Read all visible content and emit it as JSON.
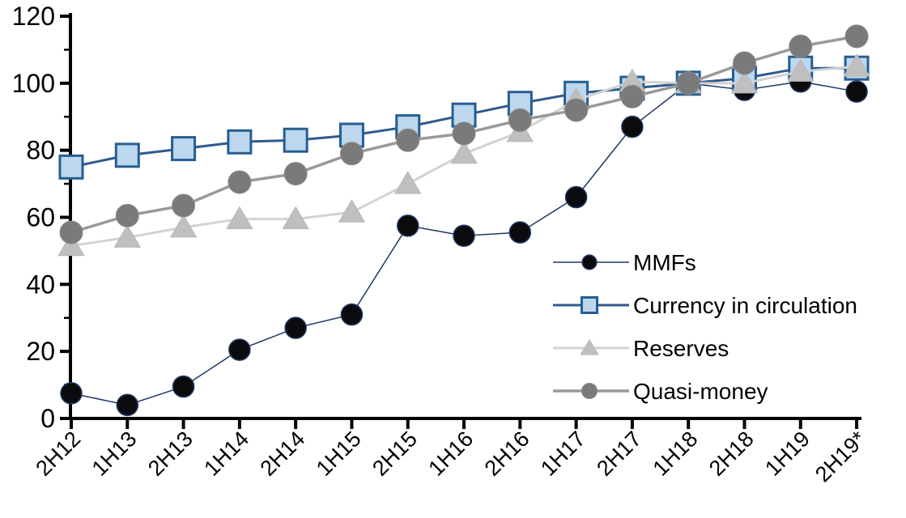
{
  "page": {
    "background": "#FFFFFF",
    "text_color": "#000000",
    "axis_color": "#000000"
  },
  "chart_data": {
    "type": "line",
    "title": "",
    "xlabel": "",
    "ylabel": "",
    "grid": false,
    "legend_position": "inside-right",
    "ylim": [
      0,
      120
    ],
    "yticks": [
      0,
      20,
      40,
      60,
      80,
      100,
      120
    ],
    "y_minor_step": 10,
    "categories": [
      "2H12",
      "1H13",
      "2H13",
      "1H14",
      "2H14",
      "1H15",
      "2H15",
      "1H16",
      "2H16",
      "1H17",
      "2H17",
      "1H18",
      "2H18",
      "1H19",
      "2H19*"
    ],
    "series": [
      {
        "name": "MMFs",
        "marker": "circle",
        "marker_size": 13,
        "marker_fill": "#0B0B0E",
        "marker_stroke": "#1F3864",
        "marker_stroke_width": 1.5,
        "line_color": "#1F3864",
        "line_width": 1.5,
        "values": [
          7.5,
          4,
          9.5,
          20.5,
          27,
          31,
          57.5,
          54.5,
          55.5,
          66,
          87,
          100,
          98,
          100.5,
          97.5
        ]
      },
      {
        "name": "Currency in circulation",
        "marker": "square",
        "marker_size": 14,
        "marker_fill": "#BDD7EE",
        "marker_stroke": "#255E91",
        "marker_stroke_width": 3,
        "line_color": "#2E5B8F",
        "line_width": 3,
        "values": [
          75,
          78.5,
          80.5,
          82.5,
          83,
          84.5,
          87,
          90.5,
          94,
          97,
          98.5,
          100,
          101.5,
          104.5,
          104.5
        ]
      },
      {
        "name": "Reserves",
        "marker": "triangle",
        "marker_size": 15,
        "marker_fill": "#BFBFBF",
        "marker_stroke": "#B8B8B8",
        "marker_stroke_width": 1,
        "line_color": "#D2D2D2",
        "line_width": 3,
        "values": [
          51.5,
          54,
          57,
          59.5,
          59.5,
          61.5,
          70,
          79,
          85.5,
          95,
          100.5,
          100,
          100,
          103.5,
          105
        ]
      },
      {
        "name": "Quasi-money",
        "marker": "circle",
        "marker_size": 14,
        "marker_fill": "#7A7A7A",
        "marker_stroke": "#8C8C8C",
        "marker_stroke_width": 1,
        "line_color": "#999999",
        "line_width": 3.5,
        "values": [
          55.5,
          60.5,
          63.5,
          70.5,
          73,
          79,
          83,
          85,
          89,
          92,
          96,
          100,
          106,
          111,
          114
        ]
      }
    ],
    "legend_labels": [
      "MMFs",
      "Currency in circulation",
      "Reserves",
      "Quasi-money"
    ]
  }
}
